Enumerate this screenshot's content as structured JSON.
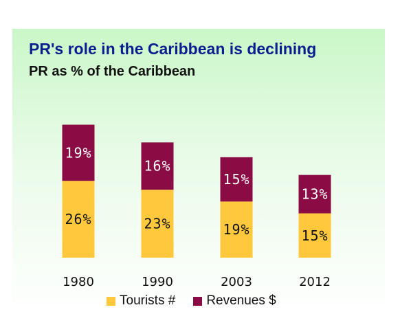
{
  "title": "PR's role in the Caribbean is declining",
  "subtitle": "PR as % of the Caribbean",
  "colors": {
    "tourists": "#ffc83d",
    "revenues": "#8b0b45",
    "title": "#0a1f8f"
  },
  "chart_data": {
    "type": "bar",
    "stacked": true,
    "categories": [
      "1980",
      "1990",
      "2003",
      "2012"
    ],
    "series": [
      {
        "name": "Tourists #",
        "values": [
          26,
          23,
          19,
          15
        ],
        "labels": [
          "26%",
          "23%",
          "19%",
          "15%"
        ]
      },
      {
        "name": "Revenues $",
        "values": [
          19,
          16,
          15,
          13
        ],
        "labels": [
          "19%",
          "16%",
          "15%",
          "13%"
        ]
      }
    ],
    "title": "PR's role in the Caribbean is declining",
    "subtitle": "PR as % of the Caribbean",
    "xlabel": "",
    "ylabel": "",
    "grid": false,
    "legend": "bottom"
  },
  "legend": {
    "tourists_label": "Tourists #",
    "revenues_label": "Revenues $"
  }
}
